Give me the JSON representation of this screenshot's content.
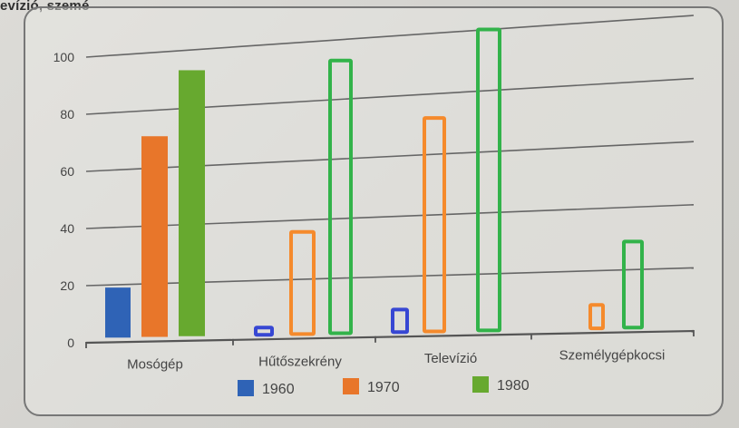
{
  "header_text": "evízió, szemé",
  "chart_data": {
    "type": "bar",
    "categories": [
      "Mosógép",
      "Hűtőszekrény",
      "Televízió",
      "Személygépkocsi"
    ],
    "series": [
      {
        "name": "1960",
        "values": [
          19,
          4,
          9,
          0
        ],
        "color": "#2f63b6"
      },
      {
        "name": "1970",
        "values": [
          71,
          36,
          72,
          9
        ],
        "color": "#e8762a"
      },
      {
        "name": "1980",
        "values": [
          93,
          93,
          100,
          29
        ],
        "color": "#67a92f"
      }
    ],
    "yticks": [
      0,
      20,
      40,
      60,
      80,
      100
    ],
    "ylim": [
      0,
      100
    ],
    "grid": true,
    "legend_position": "bottom",
    "annotation_colors": {
      "1960": "#3747d3",
      "1970": "#f58a2c",
      "1980": "#32b34a"
    }
  }
}
